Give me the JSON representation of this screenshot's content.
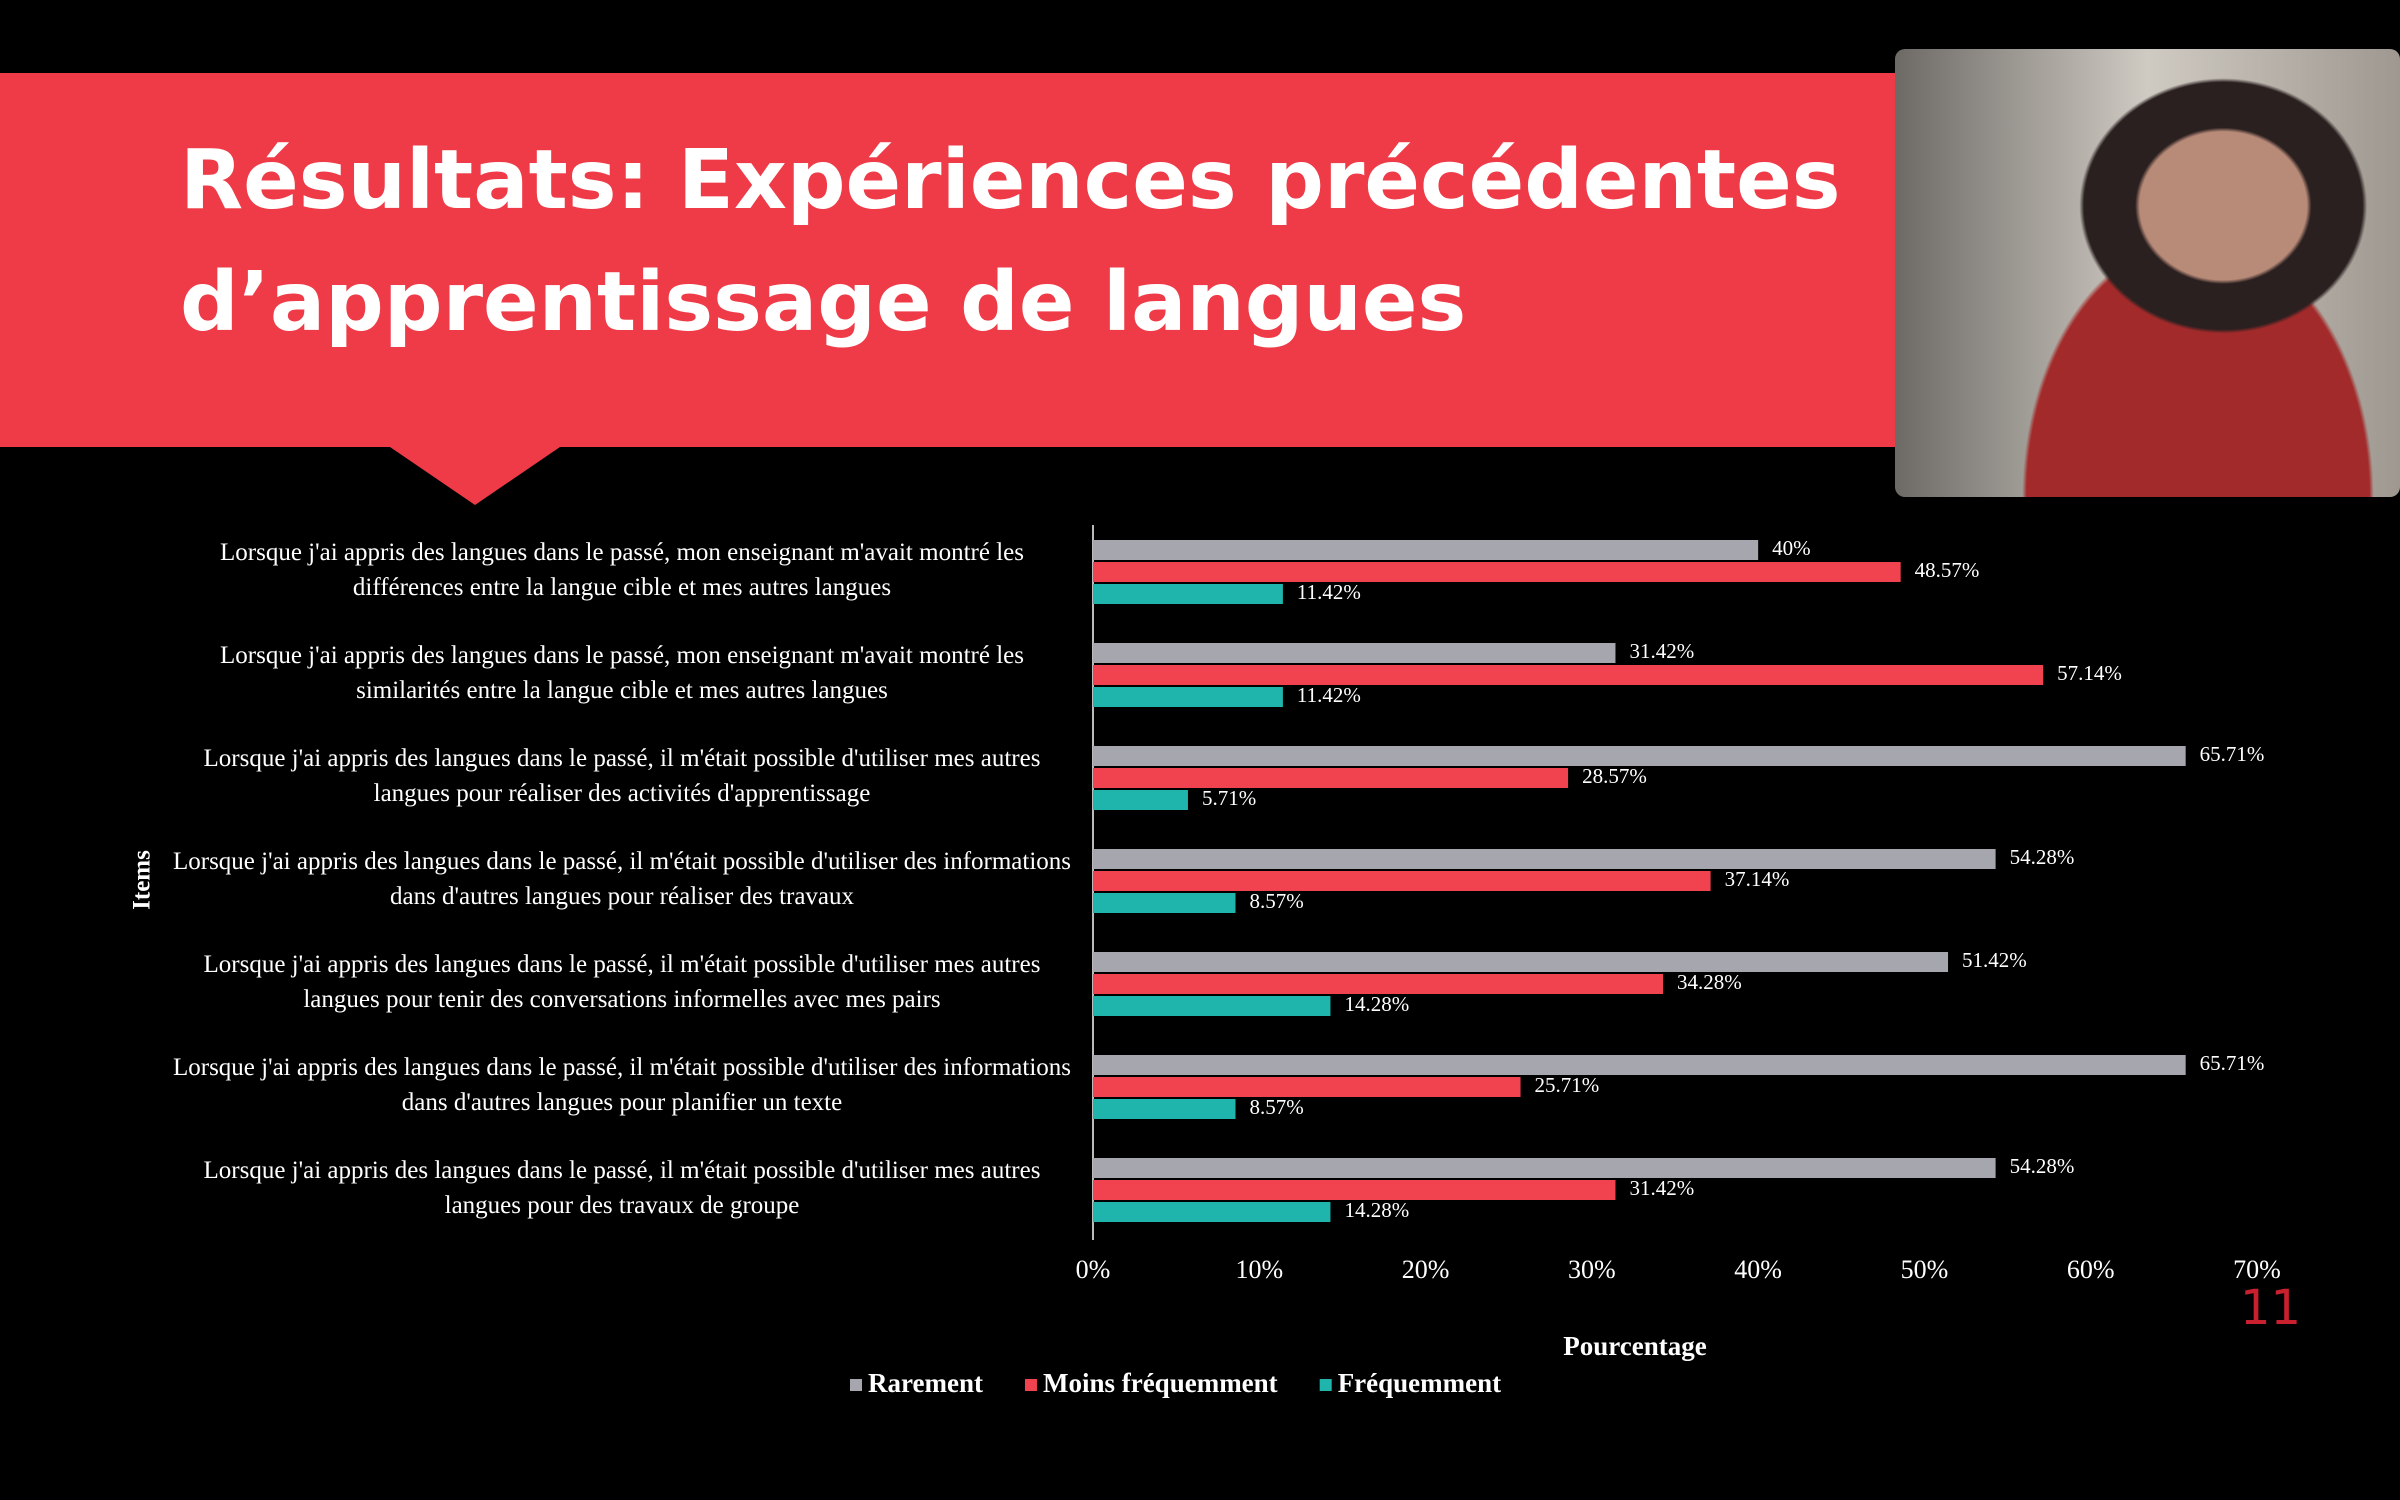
{
  "slide": {
    "title": "Résultats: Expériences précédentes d’apprentissage de langues",
    "page_number": "11"
  },
  "chart_data": {
    "type": "hbar",
    "x_label": "Pourcentage",
    "y_label": "Items",
    "categories": [
      "Lorsque j'ai appris des langues dans le passé, mon enseignant m'avait montré les différences entre la langue cible et mes autres langues",
      "Lorsque j'ai appris des langues dans le passé, mon enseignant m'avait montré les similarités entre la langue cible et mes autres langues",
      "Lorsque j'ai appris des langues dans le passé,  il m'était possible d'utiliser mes autres langues pour réaliser des activités d'apprentissage",
      "Lorsque j'ai appris des langues dans le passé, il m'était possible d'utiliser des informations dans d'autres langues pour réaliser des travaux",
      "Lorsque j'ai appris des langues dans le passé, il m'était possible d'utiliser mes autres langues pour tenir des conversations informelles avec mes pairs",
      "Lorsque j'ai appris des langues dans le passé, il m'était possible d'utiliser des informations dans d'autres langues pour planifier un texte",
      "Lorsque j'ai appris des langues dans le passé, il m'était possible d'utiliser mes autres langues pour des travaux de groupe"
    ],
    "series": [
      {
        "name": "Rarement",
        "color": "#a6a6ae",
        "values": [
          40,
          31.42,
          65.71,
          54.28,
          51.42,
          65.71,
          54.28
        ],
        "value_labels": [
          "40%",
          "31.42%",
          "65.71%",
          "54.28%",
          "51.42%",
          "65.71%",
          "54.28%"
        ]
      },
      {
        "name": "Moins fréquemment",
        "color": "#f0434f",
        "values": [
          48.57,
          57.14,
          28.57,
          37.14,
          34.28,
          25.71,
          31.42
        ],
        "value_labels": [
          "48.57%",
          "57.14%",
          "28.57%",
          "37.14%",
          "34.28%",
          "25.71%",
          "31.42%"
        ]
      },
      {
        "name": "Fréquemment",
        "color": "#1fb5ad",
        "values": [
          11.42,
          11.42,
          5.71,
          8.57,
          14.28,
          8.57,
          14.28
        ],
        "value_labels": [
          "11.42%",
          "11.42%",
          "5.71%",
          "8.57%",
          "14.28%",
          "8.57%",
          "14.28%"
        ]
      }
    ],
    "xlim": [
      0,
      70
    ],
    "xticks": [
      {
        "value": 0,
        "label": "0%"
      },
      {
        "value": 10,
        "label": "10%"
      },
      {
        "value": 20,
        "label": "20%"
      },
      {
        "value": 30,
        "label": "30%"
      },
      {
        "value": 40,
        "label": "40%"
      },
      {
        "value": 50,
        "label": "50%"
      },
      {
        "value": 60,
        "label": "60%"
      },
      {
        "value": 70,
        "label": "70%"
      }
    ],
    "legend": "bottom"
  }
}
